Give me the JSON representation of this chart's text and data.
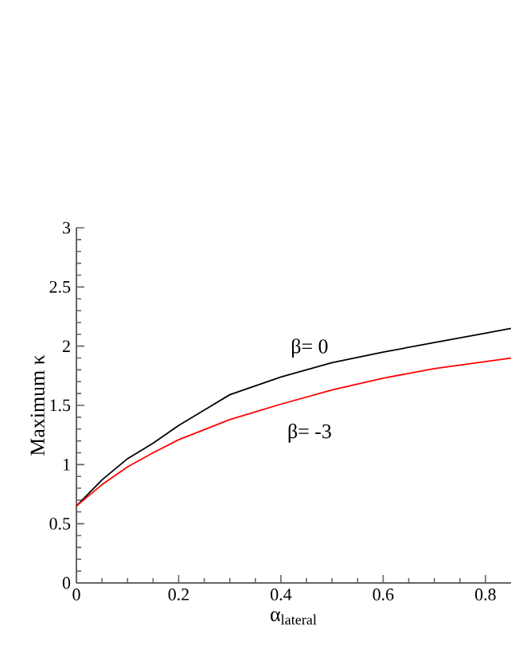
{
  "chart_data": {
    "type": "line",
    "xlabel": "α$_{lateral}$",
    "ylabel": "Maximum κ",
    "xlim": [
      0,
      0.85
    ],
    "ylim": [
      0,
      3
    ],
    "xticks": [
      0,
      0.2,
      0.4,
      0.6,
      0.8
    ],
    "yticks": [
      0,
      0.5,
      1,
      1.5,
      2,
      2.5,
      3
    ],
    "legend": false,
    "grid": false,
    "marker": "none",
    "line_style": "solid",
    "x": [
      0,
      0.05,
      0.1,
      0.15,
      0.2,
      0.3,
      0.4,
      0.5,
      0.6,
      0.7,
      0.8,
      0.85
    ],
    "series": [
      {
        "name": "β= 0",
        "color": "#000000",
        "values": [
          0.65,
          0.87,
          1.05,
          1.18,
          1.33,
          1.59,
          1.74,
          1.86,
          1.95,
          2.03,
          2.11,
          2.15
        ]
      },
      {
        "name": "β= -3",
        "color": "#ff0000",
        "values": [
          0.65,
          0.83,
          0.98,
          1.1,
          1.21,
          1.38,
          1.51,
          1.63,
          1.73,
          1.81,
          1.87,
          1.9
        ]
      }
    ]
  }
}
